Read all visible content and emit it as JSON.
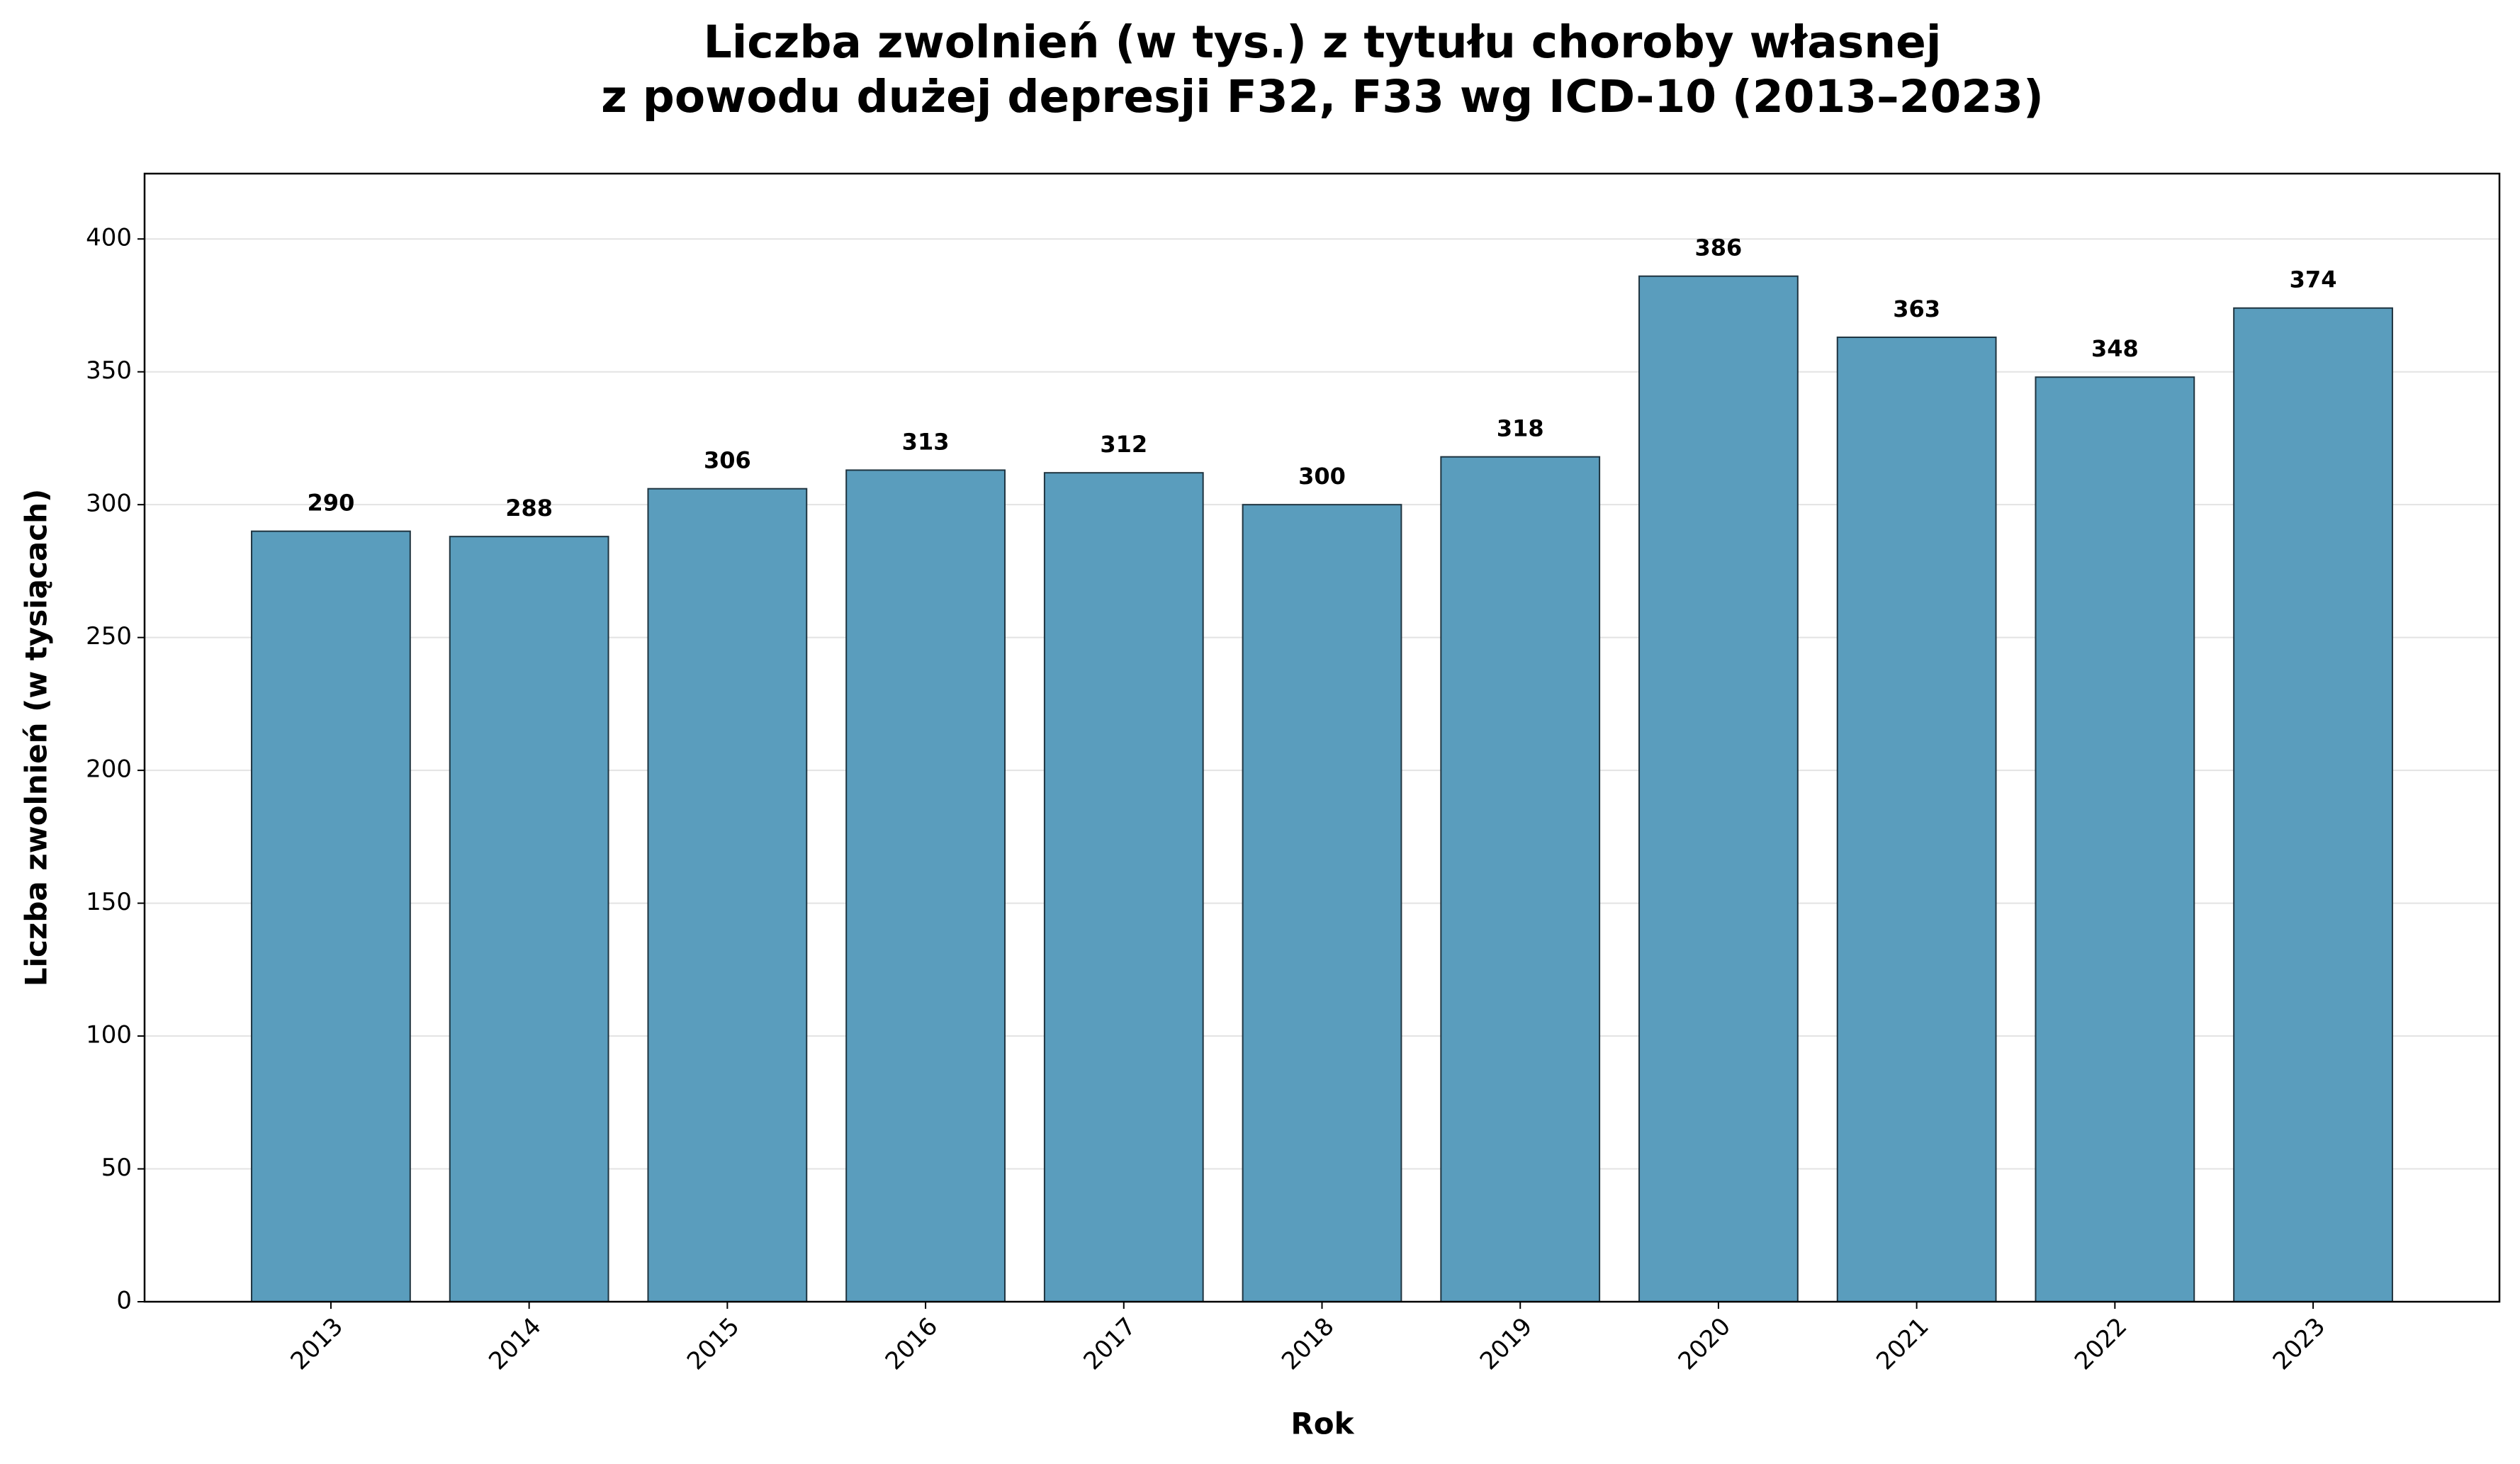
{
  "chart_data": {
    "type": "bar",
    "title": "Liczba zwolnień (w tys.) z tytułu choroby własnej",
    "subtitle": "z powodu dużej depresji F32, F33 wg ICD-10 (2013–2023)",
    "x_label": "Rok",
    "y_label": "Liczba zwolnień (w tysiącach)",
    "categories": [
      "2013",
      "2014",
      "2015",
      "2016",
      "2017",
      "2018",
      "2019",
      "2020",
      "2021",
      "2022",
      "2023"
    ],
    "values": [
      290,
      288,
      306,
      313,
      312,
      300,
      318,
      386,
      363,
      348,
      374
    ],
    "color": "#5a9dbd",
    "edge_color": "#1f3440",
    "ylim": [
      0,
      424.6
    ],
    "yticks": [
      0,
      50,
      100,
      150,
      200,
      250,
      300,
      350,
      400
    ],
    "grid": true
  }
}
